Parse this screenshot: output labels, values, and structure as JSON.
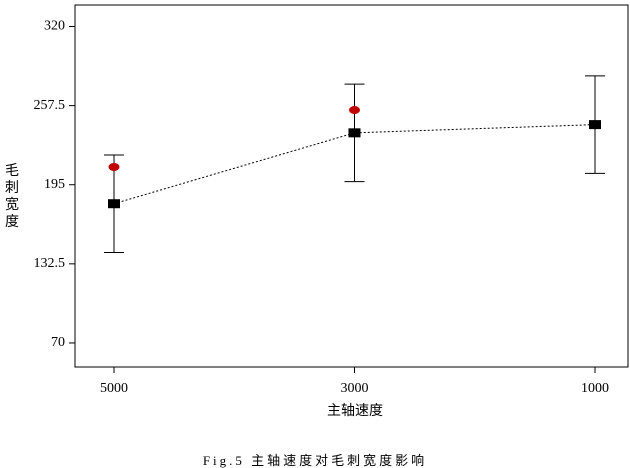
{
  "chart_data": {
    "type": "errorbar",
    "categories": [
      "5000",
      "3000",
      "1000"
    ],
    "series": [
      {
        "color": "#000000",
        "values": [
          180,
          236,
          242.5
        ],
        "errors": [
          38.5,
          38.5,
          38.5
        ]
      },
      {
        "color": "#c00000",
        "values": [
          209,
          254,
          null
        ]
      }
    ],
    "ylim": [
      51,
      337
    ],
    "yticks": [
      70,
      132.5,
      195,
      257.5,
      320
    ],
    "x_label": "主轴速度",
    "y_label": "毛刺宽度",
    "caption": "Fig.5 主轴速度对毛刺宽度影响"
  }
}
